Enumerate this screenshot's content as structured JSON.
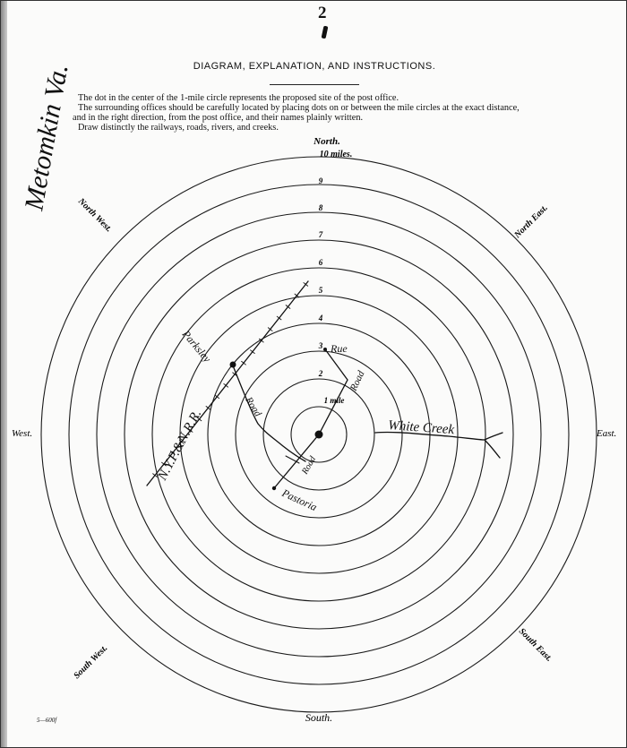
{
  "page_number": "2",
  "title": "DIAGRAM, EXPLANATION, AND INSTRUCTIONS.",
  "instructions": [
    "The dot in the center of the 1-mile circle represents the proposed site of the post office.",
    "The surrounding offices should be carefully located by placing dots on or between the mile circles at the exact distance,",
    "and in the right direction, from the post office, and their names plainly written.",
    "Draw distinctly the railways, roads, rivers, and creeks."
  ],
  "compass": {
    "north": "North.",
    "north_east": "North East.",
    "east": "East.",
    "south_east": "South East.",
    "south": "South.",
    "south_west": "South West.",
    "west": "West.",
    "north_west": "North West."
  },
  "ring_labels": [
    "1 mile",
    "2",
    "3",
    "4",
    "5",
    "6",
    "7",
    "8",
    "9",
    "10 miles."
  ],
  "handwritten": {
    "office_name": "Metomkin Va.",
    "places": [
      "Parksley",
      "Rue",
      "Pastoria"
    ],
    "railroad": "N.Y.P.&N.R.R.",
    "roads": [
      "Road",
      "Road",
      "Road"
    ],
    "creek": "White Creek"
  },
  "form_number": "5—600f"
}
